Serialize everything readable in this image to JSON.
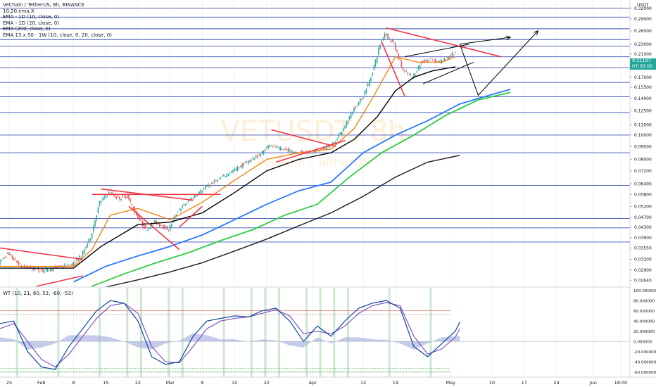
{
  "header": {
    "title": "VeChain / TetherUS, 8h, BINANCE",
    "indicators": [
      "10.20.ema.X",
      "EMA - 1D (10, close, 0)",
      "EMA - 1D (20, close, 0)",
      "EMA (200, close, 0)",
      "EMA 13.x.50 - 1W (10, close, 0, 20, close, 0)"
    ],
    "currency": "USDT"
  },
  "watermark": {
    "symbol": "VETUSDT, 8h",
    "name": "VeChain / TetherUS"
  },
  "last_price": {
    "value": "0.21197",
    "countdown": "07:30:00"
  },
  "oscillator": {
    "label": "WT (10, 21, 60, 53, -60, -53)"
  },
  "colors": {
    "bull_candle": "#26a69a",
    "bear_candle": "#ef5350",
    "ema_fast": "#f57c00",
    "ema_medium": "#000000",
    "ema_weekly_slow": "#2ecc40",
    "ema_weekly_fast": "#2979ff",
    "ema_200": "#1a1a1a",
    "horizontal_lines": "#3f51b5",
    "trendlines_red": "#f23645",
    "wt1": "#0d47a1",
    "wt2": "#7e57c2",
    "wt_fill": "#9fa8da",
    "wt_cross_bar": "#a5d6a7"
  },
  "chart_data": [
    {
      "type": "candlestick",
      "title": "VeChain / TetherUS, 8h, BINANCE",
      "yscale": "log",
      "ylim": [
        0.0248,
        0.345
      ],
      "y_ticks": [
        "0.32000",
        "0.29000",
        "0.26000",
        "0.23000",
        "0.21000",
        "0.19000",
        "0.17000",
        "0.15500",
        "0.14000",
        "0.12500",
        "0.11000",
        "0.10000",
        "0.09000",
        "0.08000",
        "0.07200",
        "0.06400",
        "0.05800",
        "0.05200",
        "0.04700",
        "0.04300",
        "0.03900",
        "0.03550",
        "0.03200",
        "0.02900",
        "0.02640"
      ],
      "x_ticks": [
        "25",
        "Feb",
        "8",
        "15",
        "22",
        "Mar",
        "8",
        "15",
        "22",
        "Apr",
        "12",
        "19",
        "May",
        "10",
        "17",
        "24",
        "Jun",
        "18:00"
      ],
      "x_domain": [
        "2021-01-23",
        "2021-06-09"
      ],
      "horizontal_levels": [
        0.32,
        0.295,
        0.265,
        0.24,
        0.226,
        0.205,
        0.185,
        0.162,
        0.142,
        0.123,
        0.1,
        0.085,
        0.063,
        0.0465,
        0.0427,
        0.0375
      ],
      "price_path": [
        [
          "2021-01-23",
          0.031
        ],
        [
          "2021-01-25",
          0.0335
        ],
        [
          "2021-01-28",
          0.03
        ],
        [
          "2021-01-31",
          0.0292
        ],
        [
          "2021-02-02",
          0.0288
        ],
        [
          "2021-02-05",
          0.0298
        ],
        [
          "2021-02-08",
          0.0305
        ],
        [
          "2021-02-10",
          0.033
        ],
        [
          "2021-02-12",
          0.039
        ],
        [
          "2021-02-14",
          0.054
        ],
        [
          "2021-02-16",
          0.059
        ],
        [
          "2021-02-18",
          0.056
        ],
        [
          "2021-02-20",
          0.057
        ],
        [
          "2021-02-22",
          0.048
        ],
        [
          "2021-02-24",
          0.042
        ],
        [
          "2021-02-26",
          0.045
        ],
        [
          "2021-03-01",
          0.042
        ],
        [
          "2021-03-03",
          0.05
        ],
        [
          "2021-03-06",
          0.056
        ],
        [
          "2021-03-09",
          0.062
        ],
        [
          "2021-03-12",
          0.067
        ],
        [
          "2021-03-15",
          0.072
        ],
        [
          "2021-03-18",
          0.078
        ],
        [
          "2021-03-21",
          0.084
        ],
        [
          "2021-03-23",
          0.092
        ],
        [
          "2021-03-25",
          0.088
        ],
        [
          "2021-03-28",
          0.086
        ],
        [
          "2021-03-31",
          0.085
        ],
        [
          "2021-04-03",
          0.087
        ],
        [
          "2021-04-06",
          0.093
        ],
        [
          "2021-04-08",
          0.106
        ],
        [
          "2021-04-10",
          0.125
        ],
        [
          "2021-04-12",
          0.14
        ],
        [
          "2021-04-14",
          0.17
        ],
        [
          "2021-04-16",
          0.23
        ],
        [
          "2021-04-17",
          0.255
        ],
        [
          "2021-04-19",
          0.23
        ],
        [
          "2021-04-21",
          0.18
        ],
        [
          "2021-04-23",
          0.17
        ],
        [
          "2021-04-25",
          0.195
        ],
        [
          "2021-04-27",
          0.2
        ],
        [
          "2021-04-29",
          0.195
        ],
        [
          "2021-05-01",
          0.205
        ],
        [
          "2021-05-02",
          0.212
        ]
      ],
      "series": [
        {
          "name": "EMA - 1D (10, close, 0)",
          "points": [
            [
              "2021-01-23",
              0.03
            ],
            [
              "2021-02-08",
              0.03
            ],
            [
              "2021-02-12",
              0.035
            ],
            [
              "2021-02-16",
              0.048
            ],
            [
              "2021-02-22",
              0.051
            ],
            [
              "2021-03-01",
              0.046
            ],
            [
              "2021-03-08",
              0.054
            ],
            [
              "2021-03-15",
              0.066
            ],
            [
              "2021-03-22",
              0.08
            ],
            [
              "2021-03-29",
              0.085
            ],
            [
              "2021-04-05",
              0.088
            ],
            [
              "2021-04-10",
              0.106
            ],
            [
              "2021-04-14",
              0.14
            ],
            [
              "2021-04-19",
              0.205
            ],
            [
              "2021-04-24",
              0.195
            ],
            [
              "2021-04-29",
              0.195
            ],
            [
              "2021-05-02",
              0.205
            ]
          ]
        },
        {
          "name": "EMA - 1D (20, close, 0)",
          "points": [
            [
              "2021-01-23",
              0.0295
            ],
            [
              "2021-02-08",
              0.0295
            ],
            [
              "2021-02-14",
              0.036
            ],
            [
              "2021-02-22",
              0.044
            ],
            [
              "2021-03-01",
              0.045
            ],
            [
              "2021-03-08",
              0.049
            ],
            [
              "2021-03-15",
              0.059
            ],
            [
              "2021-03-22",
              0.072
            ],
            [
              "2021-03-29",
              0.08
            ],
            [
              "2021-04-05",
              0.085
            ],
            [
              "2021-04-10",
              0.096
            ],
            [
              "2021-04-15",
              0.118
            ],
            [
              "2021-04-19",
              0.15
            ],
            [
              "2021-04-23",
              0.17
            ],
            [
              "2021-04-27",
              0.18
            ],
            [
              "2021-05-02",
              0.187
            ]
          ]
        },
        {
          "name": "EMA 13.x.50 - 1W (10, close, 0)",
          "points": [
            [
              "2021-02-08",
              0.026
            ],
            [
              "2021-02-15",
              0.03
            ],
            [
              "2021-02-22",
              0.033
            ],
            [
              "2021-03-01",
              0.036
            ],
            [
              "2021-03-08",
              0.04
            ],
            [
              "2021-03-15",
              0.046
            ],
            [
              "2021-03-22",
              0.053
            ],
            [
              "2021-03-29",
              0.06
            ],
            [
              "2021-04-05",
              0.065
            ],
            [
              "2021-04-12",
              0.085
            ],
            [
              "2021-04-19",
              0.1
            ],
            [
              "2021-04-26",
              0.114
            ],
            [
              "2021-05-03",
              0.133
            ],
            [
              "2021-05-10",
              0.145
            ],
            [
              "2021-05-14",
              0.152
            ]
          ]
        },
        {
          "name": "EMA 13.x.50 - 1W (20, close, 0)",
          "points": [
            [
              "2021-02-12",
              0.025
            ],
            [
              "2021-02-19",
              0.028
            ],
            [
              "2021-02-26",
              0.031
            ],
            [
              "2021-03-05",
              0.034
            ],
            [
              "2021-03-12",
              0.038
            ],
            [
              "2021-03-19",
              0.042
            ],
            [
              "2021-03-26",
              0.048
            ],
            [
              "2021-04-02",
              0.053
            ],
            [
              "2021-04-09",
              0.068
            ],
            [
              "2021-04-16",
              0.085
            ],
            [
              "2021-04-23",
              0.1
            ],
            [
              "2021-04-30",
              0.12
            ],
            [
              "2021-05-07",
              0.138
            ],
            [
              "2021-05-14",
              0.148
            ]
          ]
        },
        {
          "name": "EMA (200, close, 0)",
          "points": [
            [
              "2021-02-15",
              0.0248
            ],
            [
              "2021-02-22",
              0.0265
            ],
            [
              "2021-03-01",
              0.0285
            ],
            [
              "2021-03-08",
              0.031
            ],
            [
              "2021-03-15",
              0.0345
            ],
            [
              "2021-03-22",
              0.0385
            ],
            [
              "2021-03-29",
              0.0435
            ],
            [
              "2021-04-05",
              0.049
            ],
            [
              "2021-04-12",
              0.057
            ],
            [
              "2021-04-19",
              0.068
            ],
            [
              "2021-04-26",
              0.078
            ],
            [
              "2021-05-03",
              0.083
            ]
          ]
        }
      ],
      "trendlines": [
        {
          "color": "red",
          "from": [
            "2021-01-23",
            0.0355
          ],
          "to": [
            "2021-02-10",
            0.032
          ]
        },
        {
          "color": "red",
          "from": [
            "2021-01-31",
            0.025
          ],
          "to": [
            "2021-02-10",
            0.0275
          ]
        },
        {
          "color": "red",
          "from": [
            "2021-02-14",
            0.061
          ],
          "to": [
            "2021-03-06",
            0.055
          ]
        },
        {
          "color": "red",
          "from": [
            "2021-02-12",
            0.058
          ],
          "to": [
            "2021-03-12",
            0.058
          ]
        },
        {
          "color": "red",
          "from": [
            "2021-02-20",
            0.052
          ],
          "to": [
            "2021-03-03",
            0.035
          ]
        },
        {
          "color": "red",
          "from": [
            "2021-03-03",
            0.043
          ],
          "to": [
            "2021-03-08",
            0.052
          ]
        },
        {
          "color": "red",
          "from": [
            "2021-03-23",
            0.105
          ],
          "to": [
            "2021-04-06",
            0.09
          ]
        },
        {
          "color": "red",
          "from": [
            "2021-03-24",
            0.078
          ],
          "to": [
            "2021-04-08",
            0.095
          ]
        },
        {
          "color": "red",
          "from": [
            "2021-04-17",
            0.267
          ],
          "to": [
            "2021-05-12",
            0.205
          ]
        },
        {
          "color": "red",
          "from": [
            "2021-04-16",
            0.235
          ],
          "to": [
            "2021-04-21",
            0.143
          ]
        },
        {
          "color": "black",
          "from": [
            "2021-04-21",
            0.205
          ],
          "to": [
            "2021-05-05",
            0.23
          ]
        },
        {
          "color": "black",
          "from": [
            "2021-04-25",
            0.16
          ],
          "to": [
            "2021-05-06",
            0.195
          ]
        }
      ],
      "projections": [
        {
          "points": [
            [
              "2021-05-03",
              0.23
            ],
            [
              "2021-05-14",
              0.245
            ]
          ]
        },
        {
          "points": [
            [
              "2021-05-03",
              0.23
            ],
            [
              "2021-05-07",
              0.144
            ],
            [
              "2021-05-20",
              0.26
            ]
          ]
        }
      ]
    },
    {
      "type": "line",
      "title": "WT (10, 21, 60, 53, -60, -53)",
      "ylim": [
        -70,
        105
      ],
      "y_ticks": [
        "100.000000",
        "80.000000",
        "60.000000",
        "40.000000",
        "20.000000",
        "0.000000",
        "-20.000000",
        "-40.000000",
        "-60.000000"
      ],
      "reference_levels": [
        60,
        53,
        -60,
        -53
      ],
      "series": [
        {
          "name": "WT1",
          "points": [
            [
              "2021-01-23",
              35
            ],
            [
              "2021-01-26",
              40
            ],
            [
              "2021-01-29",
              -20
            ],
            [
              "2021-02-01",
              -50
            ],
            [
              "2021-02-04",
              -55
            ],
            [
              "2021-02-07",
              -10
            ],
            [
              "2021-02-10",
              25
            ],
            [
              "2021-02-13",
              60
            ],
            [
              "2021-02-16",
              80
            ],
            [
              "2021-02-19",
              75
            ],
            [
              "2021-02-22",
              40
            ],
            [
              "2021-02-25",
              -30
            ],
            [
              "2021-02-28",
              -45
            ],
            [
              "2021-03-03",
              -40
            ],
            [
              "2021-03-06",
              10
            ],
            [
              "2021-03-09",
              40
            ],
            [
              "2021-03-12",
              45
            ],
            [
              "2021-03-15",
              50
            ],
            [
              "2021-03-18",
              48
            ],
            [
              "2021-03-21",
              60
            ],
            [
              "2021-03-24",
              65
            ],
            [
              "2021-03-27",
              40
            ],
            [
              "2021-03-30",
              0
            ],
            [
              "2021-04-02",
              30
            ],
            [
              "2021-04-05",
              10
            ],
            [
              "2021-04-08",
              40
            ],
            [
              "2021-04-11",
              65
            ],
            [
              "2021-04-14",
              75
            ],
            [
              "2021-04-17",
              80
            ],
            [
              "2021-04-20",
              65
            ],
            [
              "2021-04-23",
              -10
            ],
            [
              "2021-04-26",
              -30
            ],
            [
              "2021-04-29",
              -5
            ],
            [
              "2021-05-02",
              20
            ],
            [
              "2021-05-03",
              38
            ]
          ]
        },
        {
          "name": "WT2",
          "points": [
            [
              "2021-01-23",
              25
            ],
            [
              "2021-01-26",
              35
            ],
            [
              "2021-01-29",
              0
            ],
            [
              "2021-02-01",
              -35
            ],
            [
              "2021-02-04",
              -50
            ],
            [
              "2021-02-07",
              -25
            ],
            [
              "2021-02-10",
              10
            ],
            [
              "2021-02-13",
              45
            ],
            [
              "2021-02-16",
              70
            ],
            [
              "2021-02-19",
              75
            ],
            [
              "2021-02-22",
              55
            ],
            [
              "2021-02-25",
              -10
            ],
            [
              "2021-02-28",
              -40
            ],
            [
              "2021-03-03",
              -42
            ],
            [
              "2021-03-06",
              -10
            ],
            [
              "2021-03-09",
              25
            ],
            [
              "2021-03-12",
              40
            ],
            [
              "2021-03-15",
              45
            ],
            [
              "2021-03-18",
              48
            ],
            [
              "2021-03-21",
              55
            ],
            [
              "2021-03-24",
              62
            ],
            [
              "2021-03-27",
              50
            ],
            [
              "2021-03-30",
              15
            ],
            [
              "2021-04-02",
              20
            ],
            [
              "2021-04-05",
              15
            ],
            [
              "2021-04-08",
              30
            ],
            [
              "2021-04-11",
              55
            ],
            [
              "2021-04-14",
              70
            ],
            [
              "2021-04-17",
              76
            ],
            [
              "2021-04-20",
              70
            ],
            [
              "2021-04-23",
              10
            ],
            [
              "2021-04-26",
              -25
            ],
            [
              "2021-04-29",
              -15
            ],
            [
              "2021-05-02",
              8
            ],
            [
              "2021-05-03",
              25
            ]
          ]
        }
      ]
    }
  ]
}
